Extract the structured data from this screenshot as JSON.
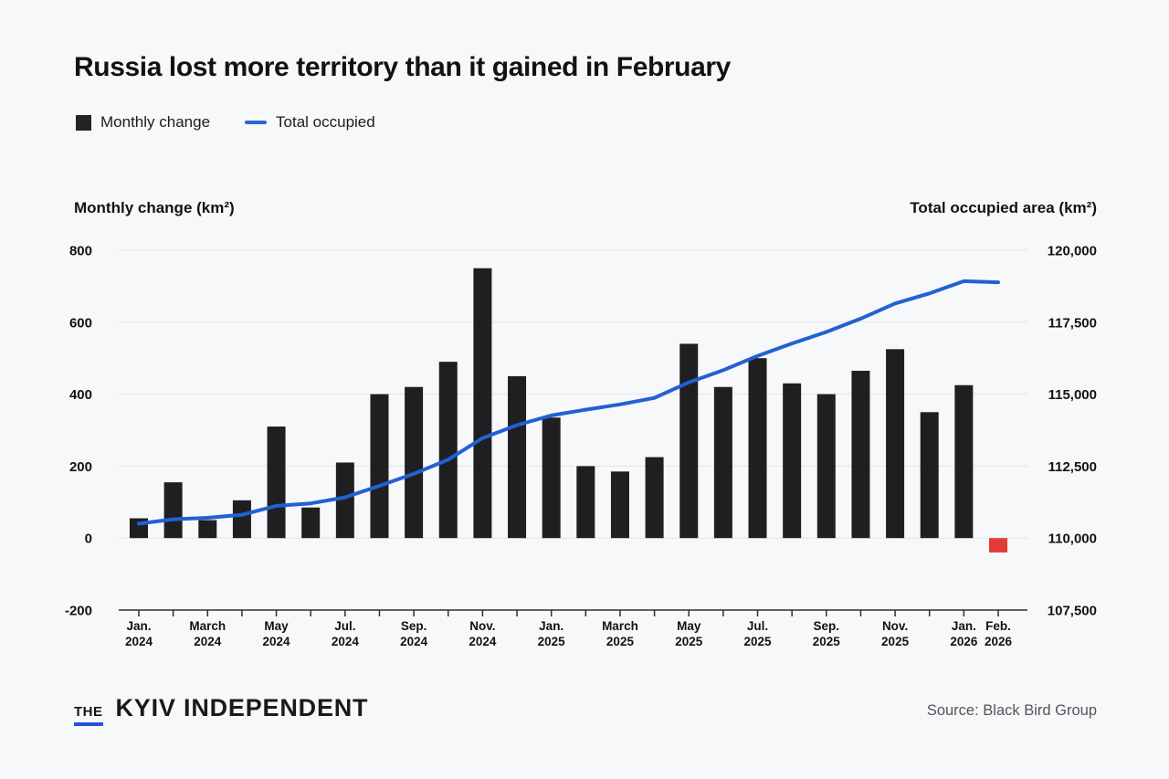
{
  "header": {
    "title": "Russia lost more territory than it gained in February"
  },
  "legend": {
    "monthly_label": "Monthly change",
    "total_label": "Total occupied"
  },
  "axes": {
    "left_title": "Monthly change (km²)",
    "right_title": "Total occupied area (km²)"
  },
  "chart_data": {
    "type": "bar+line",
    "categories": [
      "Jan. 2024",
      "Feb. 2024",
      "March 2024",
      "Apr. 2024",
      "May 2024",
      "June 2024",
      "Jul. 2024",
      "Aug. 2024",
      "Sep. 2024",
      "Oct. 2024",
      "Nov. 2024",
      "Dec. 2024",
      "Jan. 2025",
      "Feb. 2025",
      "March 2025",
      "Apr. 2025",
      "May 2025",
      "June 2025",
      "Jul. 2025",
      "Aug. 2025",
      "Sep. 2025",
      "Oct. 2025",
      "Nov. 2025",
      "Dec. 2025",
      "Jan. 2026",
      "Feb. 2026"
    ],
    "series": [
      {
        "name": "Monthly change",
        "type": "bar",
        "axis": "left",
        "values": [
          55,
          155,
          50,
          105,
          310,
          85,
          210,
          400,
          420,
          490,
          750,
          450,
          335,
          200,
          185,
          225,
          540,
          420,
          500,
          430,
          400,
          465,
          525,
          350,
          425,
          -40
        ]
      },
      {
        "name": "Total occupied",
        "type": "line",
        "axis": "right",
        "values": [
          110500,
          110655,
          110705,
          110810,
          111120,
          111205,
          111415,
          111815,
          112235,
          112725,
          113475,
          113925,
          114260,
          114460,
          114645,
          114870,
          115410,
          115830,
          116330,
          116760,
          117160,
          117625,
          118150,
          118500,
          118925,
          118885
        ]
      }
    ],
    "left_axis": {
      "label": "Monthly change (km²)",
      "range": [
        -200,
        800
      ],
      "ticks": [
        800,
        600,
        400,
        200,
        0,
        -200
      ],
      "tick_labels": [
        "800",
        "600",
        "400",
        "200",
        "0",
        "-200"
      ]
    },
    "right_axis": {
      "label": "Total occupied area (km²)",
      "range": [
        107500,
        120000
      ],
      "ticks": [
        120000,
        117500,
        115000,
        112500,
        110000,
        107500
      ],
      "tick_labels": [
        "120,000",
        "117,500",
        "115,000",
        "112,500",
        "110,000",
        "107,500"
      ]
    },
    "x_tick_labels": [
      {
        "index": 0,
        "month": "Jan.",
        "year": "2024"
      },
      {
        "index": 2,
        "month": "March",
        "year": "2024"
      },
      {
        "index": 4,
        "month": "May",
        "year": "2024"
      },
      {
        "index": 6,
        "month": "Jul.",
        "year": "2024"
      },
      {
        "index": 8,
        "month": "Sep.",
        "year": "2024"
      },
      {
        "index": 10,
        "month": "Nov.",
        "year": "2024"
      },
      {
        "index": 12,
        "month": "Jan.",
        "year": "2025"
      },
      {
        "index": 14,
        "month": "March",
        "year": "2025"
      },
      {
        "index": 16,
        "month": "May",
        "year": "2025"
      },
      {
        "index": 18,
        "month": "Jul.",
        "year": "2025"
      },
      {
        "index": 20,
        "month": "Sep.",
        "year": "2025"
      },
      {
        "index": 22,
        "month": "Nov.",
        "year": "2025"
      },
      {
        "index": 24,
        "month": "Jan.",
        "year": "2026"
      },
      {
        "index": 25,
        "month": "Feb.",
        "year": "2026"
      }
    ],
    "grid": true,
    "legend_position": "top-left"
  },
  "colors": {
    "bar": "#1f1f21",
    "bar_negative": "#e03d38",
    "line": "#2261d3",
    "grid": "#e3e4e6",
    "axis": "#2f2f2f",
    "tick_text": "#121212",
    "accent_underline": "#2453d8",
    "background": "#f7f8f9"
  },
  "footer": {
    "logo_the": "THE",
    "logo_name": "KYIV INDEPENDENT",
    "source": "Source: Black Bird Group"
  }
}
